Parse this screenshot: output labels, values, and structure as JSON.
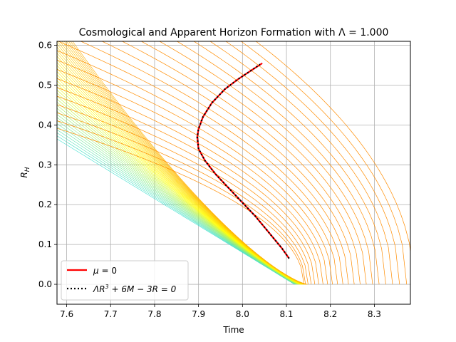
{
  "chart_data": {
    "type": "line",
    "title": "Cosmological and Apparent Horizon Formation with Λ = 1.000",
    "xlabel": "Time",
    "ylabel": "R_H",
    "xlim": [
      7.578,
      8.382
    ],
    "ylim": [
      -0.05,
      0.61
    ],
    "xticks": [
      "7.6",
      "7.7",
      "7.8",
      "7.9",
      "8.0",
      "8.1",
      "8.2",
      "8.3"
    ],
    "xtick_values": [
      7.6,
      7.7,
      7.8,
      7.9,
      8.0,
      8.1,
      8.2,
      8.3
    ],
    "yticks": [
      "0.0",
      "0.1",
      "0.2",
      "0.3",
      "0.4",
      "0.5",
      "0.6"
    ],
    "ytick_values": [
      0.0,
      0.1,
      0.2,
      0.3,
      0.4,
      0.5,
      0.6
    ],
    "grid": true,
    "legend_position": "lower-left",
    "series": [
      {
        "name": "μ = 0",
        "style": "solid",
        "color": "#ff0000",
        "x": [
          8.106,
          8.09,
          8.06,
          8.03,
          8.0,
          7.97,
          7.94,
          7.915,
          7.9,
          7.897,
          7.9,
          7.91,
          7.93,
          7.96,
          7.99,
          8.02,
          8.045
        ],
        "y": [
          0.065,
          0.09,
          0.13,
          0.17,
          0.205,
          0.24,
          0.275,
          0.31,
          0.34,
          0.37,
          0.39,
          0.42,
          0.455,
          0.49,
          0.515,
          0.537,
          0.555
        ]
      },
      {
        "name": "ΛR³ + 6M − 3R = 0",
        "style": "dotted",
        "color": "#000000",
        "x": [
          8.106,
          8.09,
          8.06,
          8.03,
          8.0,
          7.97,
          7.94,
          7.915,
          7.9,
          7.897,
          7.9,
          7.91,
          7.93,
          7.96,
          7.99,
          8.02,
          8.04
        ],
        "y": [
          0.065,
          0.09,
          0.13,
          0.17,
          0.205,
          0.24,
          0.275,
          0.31,
          0.34,
          0.37,
          0.39,
          0.42,
          0.455,
          0.49,
          0.515,
          0.537,
          0.552
        ]
      }
    ],
    "legend": [
      {
        "label_parts": [
          "μ",
          " = 0"
        ],
        "style": "solid",
        "color": "#ff0000"
      },
      {
        "label_parts": [
          "ΛR",
          "3",
          " + 6M − 3R = 0"
        ],
        "style": "dotted",
        "color": "#000000"
      }
    ],
    "curve_colors": {
      "cyan": "#40e0d0",
      "yellow": "#ffff00",
      "orange": "#ff8c00"
    }
  }
}
